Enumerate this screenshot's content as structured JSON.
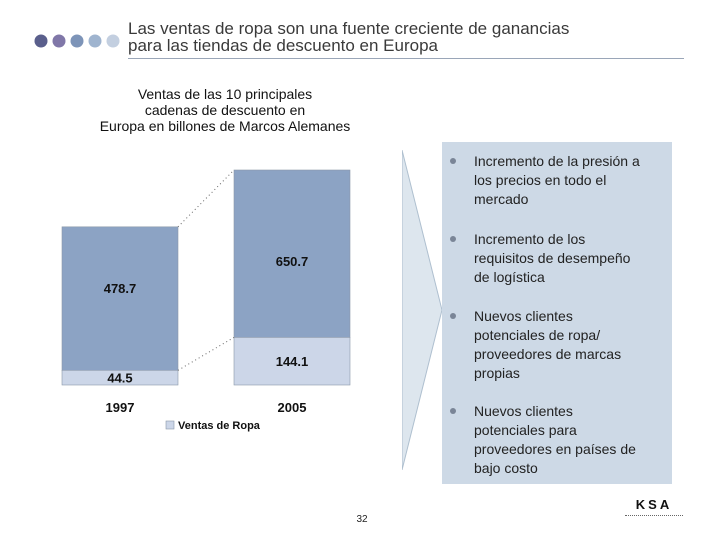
{
  "slide": {
    "title_line1": "Las ventas de ropa son una fuente creciente de ganancias",
    "title_line2": "para las tiendas de descuento en Europa",
    "page_number": "32",
    "logo": "KSA",
    "dot_colors": [
      "#5a5f8c",
      "#8077a8",
      "#7d94b8",
      "#9fb4cf",
      "#c3cfe0"
    ]
  },
  "chart_data": {
    "type": "bar",
    "title_lines": [
      "Ventas de las 10 principales",
      "cadenas de descuento en",
      "Europa en billones de Marcos Alemanes"
    ],
    "categories": [
      "1997",
      "2005"
    ],
    "series": [
      {
        "name": "Ventas de Ropa",
        "values": [
          44.5,
          144.1
        ],
        "color": "#ccd6e8"
      },
      {
        "name": "",
        "values": [
          478.7,
          650.7
        ],
        "color": "#8ca3c4"
      }
    ],
    "total_value_labels": [
      "478.7",
      "650.7"
    ],
    "segment_value_labels": [
      "44.5",
      "144.1"
    ],
    "legend": {
      "position": "bottom",
      "label": "Ventas de Ropa"
    },
    "grid": false
  },
  "bullets": [
    {
      "lines": [
        "Incremento de la presión a",
        "los precios en todo el",
        "mercado"
      ]
    },
    {
      "lines": [
        "Incremento de los",
        "requisitos de desempeño",
        "de logística"
      ]
    },
    {
      "lines": [
        "Nuevos clientes",
        "potenciales de ropa/",
        "proveedores de marcas",
        "propias"
      ]
    },
    {
      "lines": [
        "Nuevos clientes",
        "potenciales para",
        "proveedores en países de",
        "bajo costo"
      ]
    }
  ]
}
